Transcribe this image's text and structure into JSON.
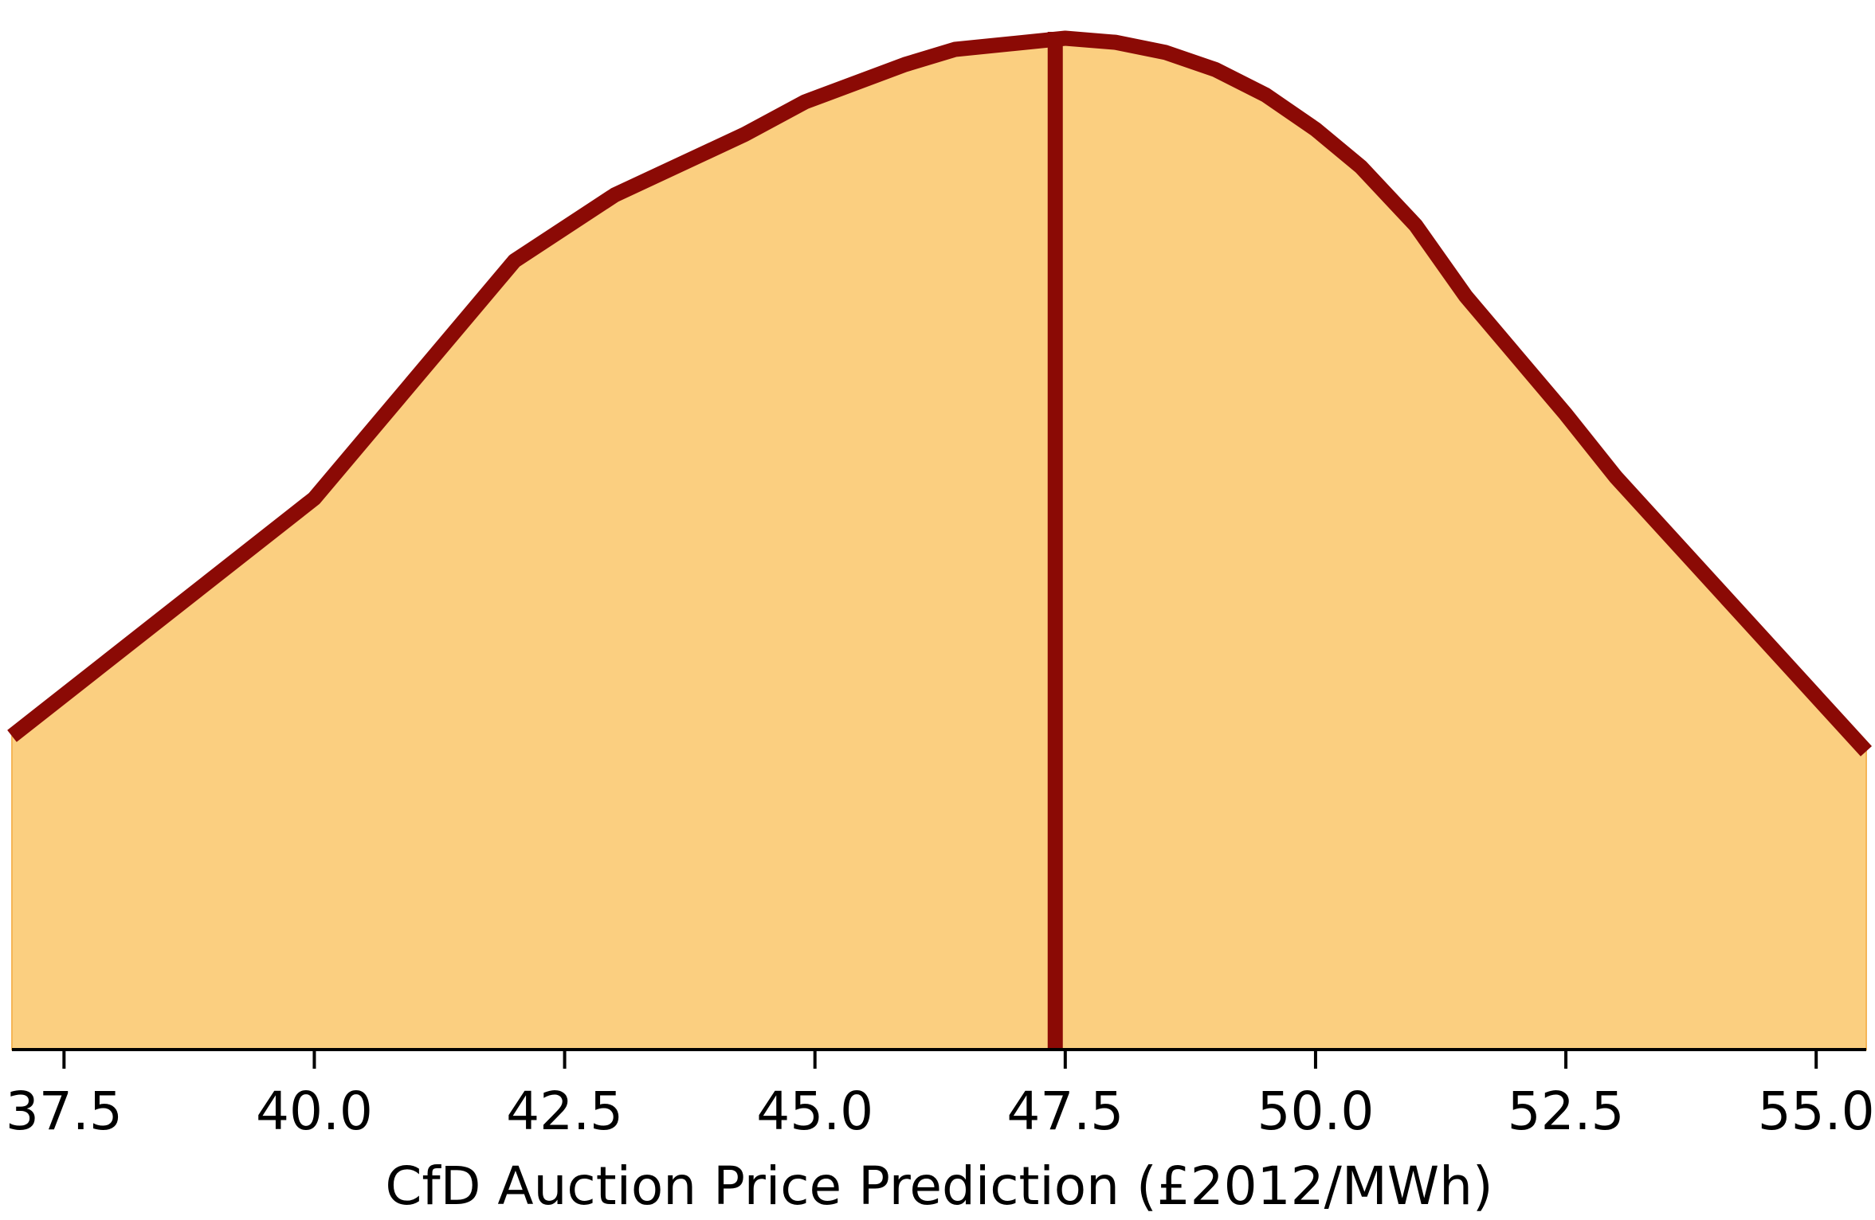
{
  "chart_data": {
    "type": "area",
    "title": "",
    "xlabel": "CfD Auction Price Prediction (£2012/MWh)",
    "ylabel": "",
    "xlim": [
      36.98,
      55.5
    ],
    "ylim": [
      0,
      1
    ],
    "x_ticks": [
      37.5,
      40.0,
      42.5,
      45.0,
      47.5,
      50.0,
      52.5,
      55.0
    ],
    "x_tick_labels": [
      "37.5",
      "40.0",
      "42.5",
      "45.0",
      "47.5",
      "50.0",
      "52.5",
      "55.0"
    ],
    "grid": false,
    "show_y_axis": false,
    "series": [
      {
        "x": [
          36.98,
          40.0,
          42.0,
          43.0,
          44.3,
          44.9,
          45.9,
          46.4,
          47.5,
          48.0,
          48.5,
          49.0,
          49.5,
          50.0,
          50.45,
          51.0,
          51.5,
          52.5,
          53.0,
          55.5
        ],
        "y": [
          0.31,
          0.545,
          0.78,
          0.845,
          0.905,
          0.937,
          0.974,
          0.989,
          1.0,
          0.996,
          0.986,
          0.969,
          0.944,
          0.91,
          0.873,
          0.815,
          0.745,
          0.628,
          0.566,
          0.295
        ]
      }
    ],
    "vertical_line": {
      "x": 47.4
    },
    "colors": {
      "fill": "#fbcf80",
      "line": "#8b0a05",
      "axis": "#000000"
    }
  }
}
